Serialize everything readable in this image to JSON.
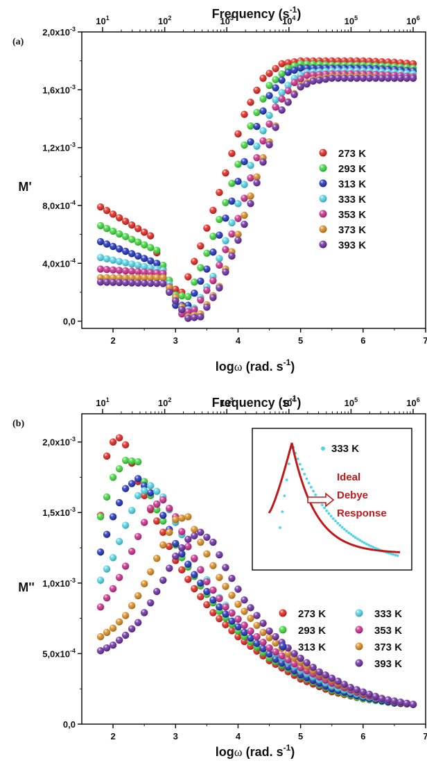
{
  "colors": {
    "273 K": "#e0231c",
    "293 K": "#3ed63a",
    "313 K": "#1c2fb8",
    "333 K": "#4fd4e6",
    "353 K": "#c82a8a",
    "373 K": "#d88a1e",
    "393 K": "#6a2aa0",
    "ideal": "#c01818"
  },
  "chart_data": [
    {
      "type": "scatter",
      "panel_label": "(a)",
      "xlabel": "logω (rad. s-1)",
      "ylabel": "M'",
      "top_axis_label": "Frequency (s-1)",
      "top_ticks": [
        "10^1",
        "10^2",
        "10^3",
        "10^4",
        "10^5",
        "10^6"
      ],
      "xlim": [
        1.5,
        7
      ],
      "ylim": [
        -5e-05,
        0.002
      ],
      "xticks": [
        "2",
        "3",
        "4",
        "5",
        "6",
        "7"
      ],
      "yticks": [
        "0,0",
        "4,0x10^-4",
        "8,0x10^-4",
        "1,2x10^-3",
        "1,6x10^-3",
        "2,0x10^-3"
      ],
      "legend_position": "right-middle",
      "series": [
        {
          "name": "273 K",
          "x": [
            1.8,
            2.6,
            2.9,
            3.1,
            3.4,
            3.7,
            4.1,
            4.4,
            4.7,
            5.0,
            5.5,
            6.0,
            6.5,
            6.8
          ],
          "y": [
            0.00079,
            0.00059,
            0.00024,
            0.0002,
            0.00052,
            0.00089,
            0.00143,
            0.00168,
            0.00178,
            0.0018,
            0.0018,
            0.0018,
            0.00179,
            0.00178
          ]
        },
        {
          "name": "293 K",
          "x": [
            1.8,
            2.7,
            3.0,
            3.2,
            3.5,
            3.8,
            4.2,
            4.5,
            4.8,
            5.0,
            5.5,
            6.0,
            6.5,
            6.8
          ],
          "y": [
            0.00066,
            0.00049,
            0.00018,
            0.00017,
            0.00047,
            0.00082,
            0.00135,
            0.00163,
            0.00175,
            0.00178,
            0.00177,
            0.00177,
            0.00176,
            0.00175
          ]
        },
        {
          "name": "313 K",
          "x": [
            1.8,
            2.7,
            3.0,
            3.2,
            3.5,
            3.9,
            4.2,
            4.5,
            4.8,
            5.0,
            5.5,
            6.0,
            6.5,
            6.8
          ],
          "y": [
            0.00055,
            0.0004,
            0.00011,
            0.00011,
            0.00036,
            0.00083,
            0.00124,
            0.00156,
            0.00172,
            0.00175,
            0.00175,
            0.00175,
            0.00174,
            0.00173
          ]
        },
        {
          "name": "333 K",
          "x": [
            1.8,
            2.8,
            3.1,
            3.3,
            3.6,
            3.9,
            4.3,
            4.6,
            4.9,
            5.1,
            5.5,
            6.0,
            6.5,
            6.8
          ],
          "y": [
            0.00044,
            0.00035,
            7e-05,
            9e-05,
            0.00031,
            0.00068,
            0.00121,
            0.00153,
            0.00168,
            0.00172,
            0.00173,
            0.00173,
            0.00172,
            0.00171
          ]
        },
        {
          "name": "353 K",
          "x": [
            1.8,
            2.8,
            3.1,
            3.3,
            3.6,
            4.0,
            4.3,
            4.6,
            4.9,
            5.1,
            5.5,
            6.0,
            6.5,
            6.8
          ],
          "y": [
            0.00036,
            0.00033,
            5e-05,
            8e-05,
            0.00028,
            0.00071,
            0.00113,
            0.00148,
            0.00165,
            0.0017,
            0.00171,
            0.00171,
            0.0017,
            0.00169
          ]
        },
        {
          "name": "373 K",
          "x": [
            1.8,
            2.8,
            3.2,
            3.4,
            3.7,
            4.0,
            4.4,
            4.7,
            5.0,
            5.2,
            5.5,
            6.0,
            6.5,
            6.8
          ],
          "y": [
            0.0003,
            0.0003,
            3e-05,
            5e-05,
            0.00024,
            0.0006,
            0.00113,
            0.00146,
            0.00163,
            0.00167,
            0.00169,
            0.00169,
            0.00168,
            0.00168
          ]
        },
        {
          "name": "393 K",
          "x": [
            1.8,
            2.8,
            3.2,
            3.4,
            3.7,
            4.1,
            4.4,
            4.7,
            5.0,
            5.2,
            5.5,
            6.0,
            6.5,
            6.8
          ],
          "y": [
            0.00027,
            0.00026,
            2e-05,
            3e-05,
            0.00023,
            0.00067,
            0.0011,
            0.00146,
            0.00162,
            0.00166,
            0.00168,
            0.00168,
            0.00168,
            0.00168
          ]
        }
      ]
    },
    {
      "type": "scatter",
      "panel_label": "(b)",
      "xlabel": "logω (rad. s-1)",
      "ylabel": "M''",
      "top_axis_label": "Frequency (s-1)",
      "top_ticks": [
        "10^1",
        "10^2",
        "10^3",
        "10^4",
        "10^5",
        "10^6"
      ],
      "xlim": [
        1.5,
        7
      ],
      "ylim": [
        0,
        0.0022
      ],
      "xticks": [
        "2",
        "3",
        "4",
        "5",
        "6",
        "7"
      ],
      "yticks": [
        "0,0",
        "5,0x10^-4",
        "1,0x10^-3",
        "1,5x10^-3",
        "2,0x10^-3"
      ],
      "legend_position": "right-middle",
      "series": [
        {
          "name": "273 K",
          "x": [
            1.8,
            1.9,
            2.0,
            2.1,
            2.2,
            2.4,
            2.6,
            2.8,
            3.0,
            3.3,
            3.6,
            4.0,
            4.5,
            5.0,
            5.5,
            6.0,
            6.5,
            6.8
          ],
          "y": [
            0.00148,
            0.0019,
            0.002,
            0.00203,
            0.00198,
            0.00172,
            0.00152,
            0.00136,
            0.00116,
            0.00096,
            0.00079,
            0.00062,
            0.00045,
            0.00032,
            0.00023,
            0.00018,
            0.00015,
            0.00014
          ]
        },
        {
          "name": "293 K",
          "x": [
            1.8,
            2.0,
            2.2,
            2.4,
            2.5,
            2.7,
            2.9,
            3.1,
            3.4,
            3.7,
            4.0,
            4.5,
            5.0,
            5.5,
            6.0,
            6.5,
            6.8
          ],
          "y": [
            0.00147,
            0.00175,
            0.00187,
            0.00186,
            0.00172,
            0.00152,
            0.00136,
            0.00118,
            0.00098,
            0.0008,
            0.00066,
            0.00047,
            0.00034,
            0.00024,
            0.00018,
            0.00015,
            0.00014
          ]
        },
        {
          "name": "313 K",
          "x": [
            1.8,
            2.0,
            2.2,
            2.4,
            2.6,
            2.8,
            3.0,
            3.3,
            3.6,
            3.9,
            4.2,
            4.6,
            5.0,
            5.5,
            6.0,
            6.5,
            6.8
          ],
          "y": [
            0.00122,
            0.00147,
            0.00167,
            0.00174,
            0.00164,
            0.00148,
            0.00128,
            0.00106,
            0.00088,
            0.00073,
            0.00061,
            0.00046,
            0.00035,
            0.00025,
            0.00019,
            0.00015,
            0.00014
          ]
        },
        {
          "name": "333 K",
          "x": [
            1.8,
            2.0,
            2.2,
            2.4,
            2.6,
            2.8,
            3.0,
            3.3,
            3.6,
            3.9,
            4.2,
            4.6,
            5.0,
            5.5,
            6.0,
            6.5,
            6.8
          ],
          "y": [
            0.00102,
            0.00118,
            0.00141,
            0.00162,
            0.00169,
            0.00161,
            0.00143,
            0.00117,
            0.00095,
            0.00079,
            0.00066,
            0.0005,
            0.00038,
            0.00027,
            0.0002,
            0.00016,
            0.00014
          ]
        },
        {
          "name": "353 K",
          "x": [
            1.8,
            2.0,
            2.2,
            2.4,
            2.6,
            2.8,
            3.0,
            3.2,
            3.5,
            3.8,
            4.1,
            4.5,
            5.0,
            5.5,
            6.0,
            6.5,
            6.8
          ],
          "y": [
            0.00083,
            0.00096,
            0.00112,
            0.00133,
            0.00153,
            0.00159,
            0.00147,
            0.00126,
            0.00101,
            0.00083,
            0.0007,
            0.00054,
            0.0004,
            0.00029,
            0.00021,
            0.00016,
            0.00014
          ]
        },
        {
          "name": "373 K",
          "x": [
            1.8,
            2.0,
            2.2,
            2.4,
            2.6,
            2.8,
            3.0,
            3.2,
            3.4,
            3.7,
            4.0,
            4.4,
            4.8,
            5.2,
            5.6,
            6.0,
            6.5,
            6.8
          ],
          "y": [
            0.00062,
            0.00068,
            0.00077,
            0.00091,
            0.00108,
            0.00127,
            0.00145,
            0.00147,
            0.00129,
            0.00104,
            0.00085,
            0.00065,
            0.0005,
            0.00038,
            0.00029,
            0.00022,
            0.00016,
            0.00014
          ]
        },
        {
          "name": "393 K",
          "x": [
            1.8,
            2.0,
            2.2,
            2.4,
            2.6,
            2.8,
            3.0,
            3.2,
            3.4,
            3.6,
            3.8,
            4.1,
            4.5,
            4.9,
            5.3,
            5.8,
            6.3,
            6.8
          ],
          "y": [
            0.00052,
            0.00056,
            0.00063,
            0.00072,
            0.00086,
            0.00102,
            0.00119,
            0.00131,
            0.00136,
            0.00129,
            0.00111,
            0.00088,
            0.00066,
            0.0005,
            0.00037,
            0.00026,
            0.00018,
            0.00014
          ]
        }
      ],
      "inset": {
        "series_label": "333 K",
        "annotation": [
          "Ideal",
          "Debye",
          "Response"
        ]
      }
    }
  ]
}
